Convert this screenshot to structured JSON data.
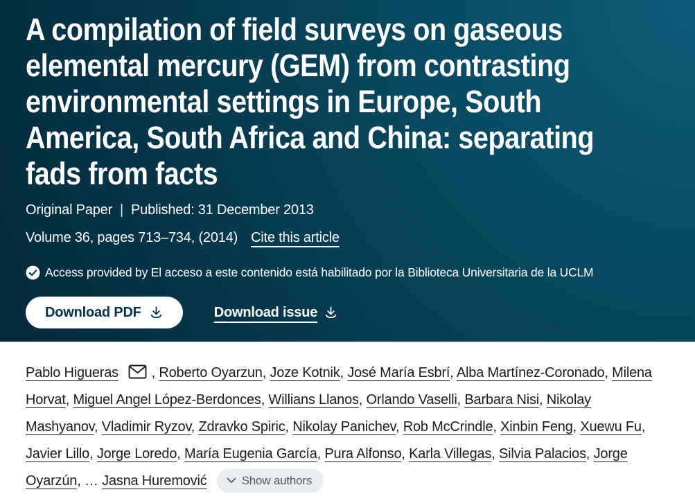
{
  "header": {
    "title_lines": [
      "A compilation of field surveys on gaseous",
      "elemental mercury (GEM) from contrasting",
      "environmental settings in Europe, South",
      "America, South Africa and China: separating",
      "fads from facts"
    ],
    "meta": {
      "article_type": "Original Paper",
      "separator": "|",
      "published": "Published: 31 December 2013",
      "volume_pages": "Volume 36, pages 713–734, (2014)",
      "cite_link": "Cite this article"
    },
    "access_note": "Access provided by El acceso a este contenido está habilitado por la Biblioteca Universitaria de la UCLM",
    "buttons": {
      "download_pdf": "Download PDF",
      "download_issue": "Download issue"
    },
    "icons": {
      "access": "check-circle-icon",
      "download": "download-icon"
    },
    "colors": {
      "banner_gradient_light": "#0d5b7a",
      "banner_gradient_dark": "#032a3c",
      "banner_text": "#ffffff",
      "pdf_button_text": "#01324b"
    }
  },
  "authors": {
    "names": [
      "Pablo Higueras",
      "Roberto Oyarzun",
      "Joze Kotnik",
      "José María Esbrí",
      "Alba Martínez-Coronado",
      "Milena Horvat",
      "Miguel Angel López-Berdonces",
      "Willians Llanos",
      "Orlando Vaselli",
      "Barbara Nisi",
      "Nikolay Mashyanov",
      "Vladimir Ryzov",
      "Zdravko Spiric",
      "Nikolay Panichev",
      "Rob McCrindle",
      "Xinbin Feng",
      "Xuewu Fu",
      "Javier Lillo",
      "Jorge Loredo",
      "María Eugenia García",
      "Pura Alfonso",
      "Karla Villegas",
      "Silvia Palacios",
      "Jorge Oyarzún",
      "Jasna Huremović"
    ],
    "corresponding_index": 0,
    "separator": ", ",
    "ellipsis_separator": ", … ",
    "ellipsis_before_last": true,
    "show_authors_label": "Show authors",
    "icons": {
      "corresponding": "envelope-icon",
      "show_authors": "chevron-down-icon"
    },
    "colors": {
      "author_link": "#1c1c1c",
      "show_authors_bg": "#e9edef",
      "show_authors_text": "#4d5b66"
    }
  }
}
